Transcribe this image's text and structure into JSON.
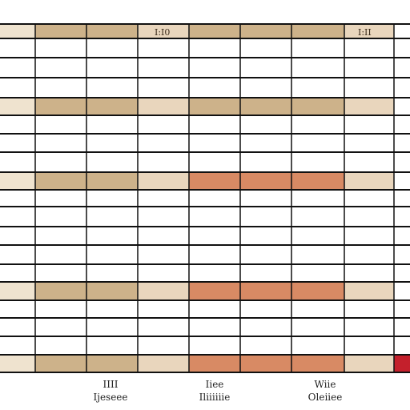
{
  "spreadsheet": {
    "cell_labels": [
      {
        "row": 0,
        "col": 3,
        "text": "I:I0"
      },
      {
        "row": 0,
        "col": 7,
        "text": "I:II"
      }
    ],
    "footer_labels": [
      {
        "line1": "IIII",
        "line2": "Ijeseee"
      },
      {
        "line1": "Iiee",
        "line2": "Iliiiiiie"
      },
      {
        "line1": "Wiie",
        "line2": "Oleiiee"
      }
    ]
  },
  "colors": {
    "grid_line": "#111111",
    "row_fill_light": "#efe3cf",
    "row_fill_tan": "#cdb28a",
    "row_fill_orange": "#d88a64",
    "row_fill_pale": "#e9d6bd",
    "row_fill_red": "#c4202c"
  }
}
